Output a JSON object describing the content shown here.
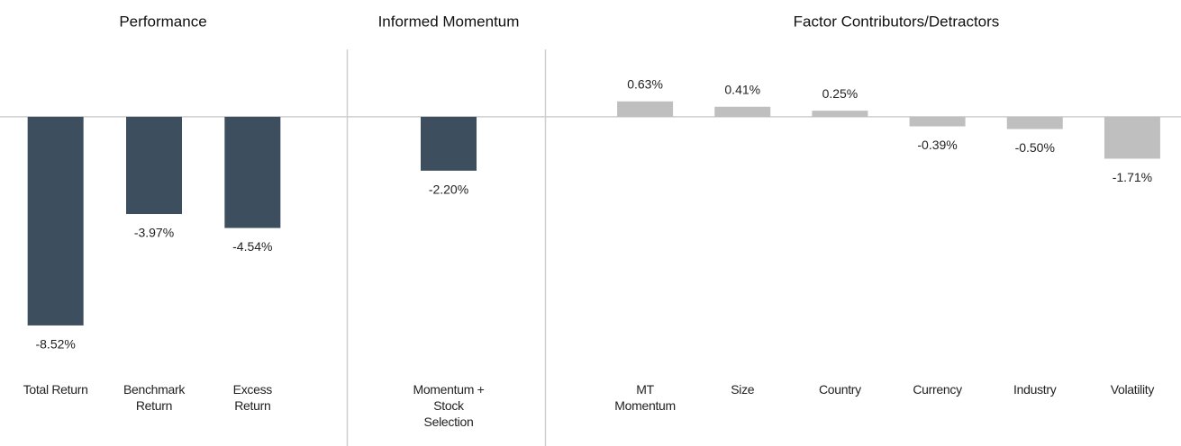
{
  "chart_data": [
    {
      "type": "bar",
      "title": "Performance",
      "categories": [
        "Total Return",
        "Benchmark Return",
        "Excess Return"
      ],
      "values": [
        -8.52,
        -3.97,
        -4.54
      ],
      "value_labels": [
        "-8.52%",
        "-3.97%",
        "-4.54%"
      ],
      "color": "#3d4e5e",
      "ylim": [
        -9,
        2.2
      ]
    },
    {
      "type": "bar",
      "title": "Informed Momentum",
      "categories": [
        "Momentum + Stock Selection"
      ],
      "values": [
        -2.2
      ],
      "value_labels": [
        "-2.20%"
      ],
      "color": "#3d4e5e",
      "ylim": [
        -9,
        2.2
      ]
    },
    {
      "type": "bar",
      "title": "Factor Contributors/Detractors",
      "categories": [
        "MT Momentum",
        "Size",
        "Country",
        "Currency",
        "Industry",
        "Volatility"
      ],
      "values": [
        0.63,
        0.41,
        0.25,
        -0.39,
        -0.5,
        -1.71
      ],
      "value_labels": [
        "0.63%",
        "0.41%",
        "0.25%",
        "-0.39%",
        "-0.50%",
        "-1.71%"
      ],
      "color": "#bfbfbf",
      "ylim": [
        -9,
        2.2
      ]
    }
  ]
}
